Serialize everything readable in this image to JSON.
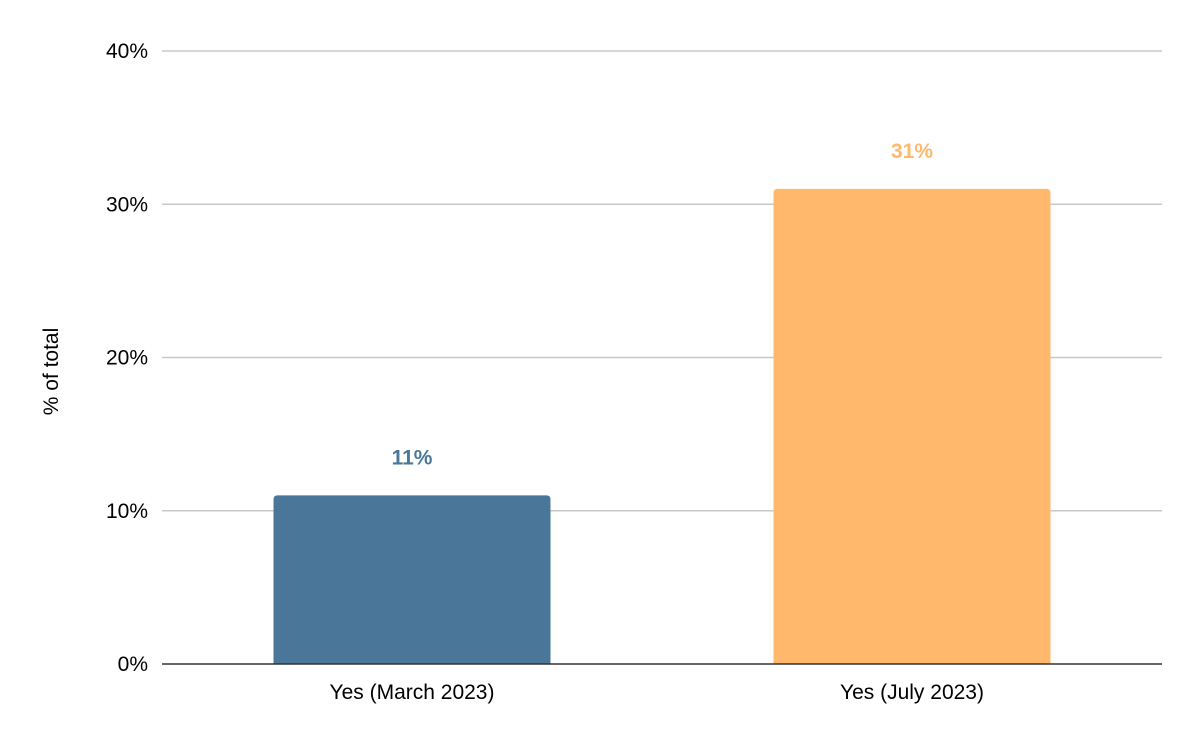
{
  "chart_data": {
    "type": "bar",
    "title": "",
    "xlabel": "",
    "ylabel": "% of total",
    "categories": [
      "Yes (March 2023)",
      "Yes (July 2023)"
    ],
    "values": [
      11,
      31
    ],
    "value_labels": [
      "11%",
      "31%"
    ],
    "bar_colors": [
      "#4a7799",
      "#ffb86c"
    ],
    "ylim": [
      0,
      40
    ],
    "yticks": [
      0,
      10,
      20,
      30,
      40
    ],
    "ytick_labels": [
      "0%",
      "10%",
      "20%",
      "30%",
      "40%"
    ],
    "grid": true,
    "legend": "none"
  }
}
